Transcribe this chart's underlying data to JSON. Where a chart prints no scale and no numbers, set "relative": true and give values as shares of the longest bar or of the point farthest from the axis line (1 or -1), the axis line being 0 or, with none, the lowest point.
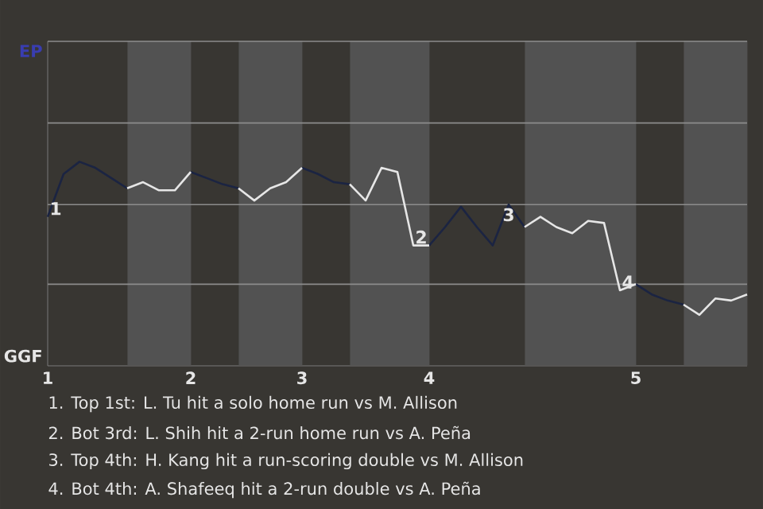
{
  "chart_data": {
    "type": "line",
    "relative": true,
    "categories": [
      "1",
      null,
      null,
      null,
      null,
      null,
      null,
      null,
      null,
      "2",
      null,
      null,
      null,
      null,
      null,
      null,
      "3",
      null,
      null,
      null,
      null,
      null,
      null,
      null,
      "4",
      null,
      null,
      null,
      null,
      null,
      null,
      null,
      null,
      null,
      null,
      null,
      null,
      "5",
      null,
      null,
      null,
      null,
      null,
      null,
      null
    ],
    "series": [
      {
        "color": "#1b2442",
        "values": [
          0.73,
          0.94,
          1,
          0.97,
          0.92,
          0.87,
          null,
          null,
          null,
          0.95,
          0.92,
          0.89,
          0.87,
          null,
          null,
          null,
          0.97,
          0.94,
          0.9,
          0.89,
          null,
          null,
          null,
          null,
          0.59,
          0.68,
          0.78,
          0.68,
          0.59,
          0.79,
          0.68,
          null,
          null,
          null,
          null,
          null,
          null,
          0.4,
          0.35,
          0.32,
          0.3,
          null,
          null,
          null,
          null
        ]
      },
      {
        "color": "#e6e6e6",
        "values": [
          null,
          null,
          null,
          null,
          null,
          0.87,
          0.9,
          0.86,
          0.86,
          0.95,
          null,
          null,
          0.87,
          0.81,
          0.87,
          0.9,
          0.97,
          null,
          null,
          0.89,
          0.81,
          0.97,
          0.95,
          0.59,
          0.59,
          null,
          null,
          null,
          null,
          null,
          0.68,
          0.73,
          0.68,
          0.65,
          0.71,
          0.7,
          0.37,
          0.4,
          null,
          null,
          0.3,
          0.25,
          0.33,
          0.32,
          0.35
        ]
      }
    ],
    "ref_lines": [
      {
        "axis": "y",
        "value": 0.4,
        "color": "#8c8c8c"
      },
      {
        "axis": "y",
        "value": 0.79,
        "color": "#8c8c8c"
      },
      {
        "axis": "y",
        "value": 1.19,
        "color": "#8c8c8c"
      }
    ],
    "marker": "none",
    "line_style": "solid",
    "annotations": [
      "EP",
      "GGF",
      {
        "text": "1",
        "y": 0.73
      },
      {
        "text": "2",
        "y": 0.59
      },
      {
        "text": "3",
        "y": 0.79
      },
      {
        "text": "4",
        "y": 0.37
      },
      "1. Top 1st: L. Tu hit a solo home run vs M. Allison",
      "2. Bot 3rd: L. Shih hit a 2-run home run vs A. Peña",
      "3. Top 4th: H. Kang hit a run-scoring double vs M. Allison",
      "4. Bot 4th: A. Shafeeq hit a 2-run double vs A. Peña"
    ]
  }
}
